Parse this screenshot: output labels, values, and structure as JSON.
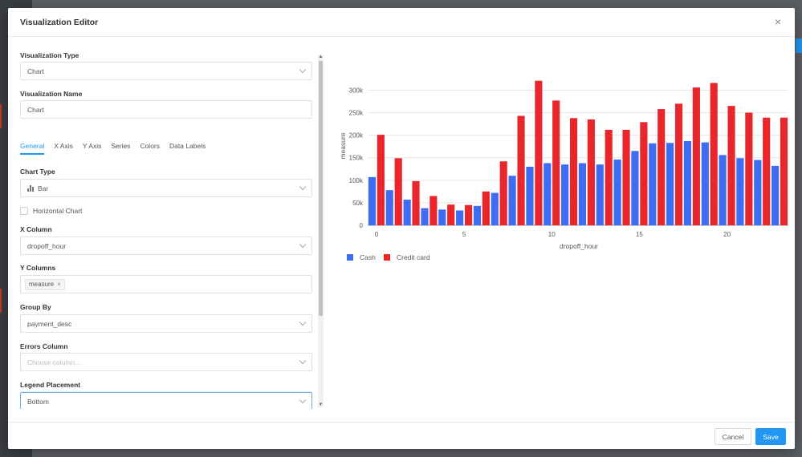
{
  "modal": {
    "title": "Visualization Editor",
    "close_label": "×"
  },
  "form": {
    "viz_type_label": "Visualization Type",
    "viz_type_value": "Chart",
    "viz_name_label": "Visualization Name",
    "viz_name_value": "Chart",
    "tabs": [
      "General",
      "X Axis",
      "Y Axis",
      "Series",
      "Colors",
      "Data Labels"
    ],
    "chart_type_label": "Chart Type",
    "chart_type_value": "Bar",
    "horizontal_label": "Horizontal Chart",
    "x_column_label": "X Column",
    "x_column_value": "dropoff_hour",
    "y_columns_label": "Y Columns",
    "y_columns_tag": "measure",
    "y_columns_tag_remove": "×",
    "group_by_label": "Group By",
    "group_by_value": "payment_desc",
    "errors_label": "Errors Column",
    "errors_placeholder": "Choose column...",
    "legend_label": "Legend Placement",
    "legend_value": "Bottom"
  },
  "footer": {
    "cancel_label": "Cancel",
    "save_label": "Save"
  },
  "colors": {
    "cash": "#3e6df2",
    "credit": "#e8262b",
    "accent": "#2196f3"
  },
  "chart_data": {
    "type": "bar",
    "xlabel": "dropoff_hour",
    "ylabel": "measure",
    "ylim": [
      0,
      340000
    ],
    "yticks": [
      0,
      50000,
      100000,
      150000,
      200000,
      250000,
      300000
    ],
    "ytick_labels": [
      "0",
      "50k",
      "100k",
      "150k",
      "200k",
      "250k",
      "300k"
    ],
    "xticks": [
      0,
      5,
      10,
      15,
      20
    ],
    "categories": [
      0,
      1,
      2,
      3,
      4,
      5,
      6,
      7,
      8,
      9,
      10,
      11,
      12,
      13,
      14,
      15,
      16,
      17,
      18,
      19,
      20,
      21,
      22,
      23
    ],
    "legend_position": "bottom-left",
    "grid": true,
    "series": [
      {
        "name": "Cash",
        "values": [
          107000,
          78000,
          57000,
          38000,
          35000,
          33000,
          43000,
          72000,
          110000,
          130000,
          138000,
          135000,
          138000,
          135000,
          146000,
          165000,
          182000,
          183000,
          187000,
          184000,
          156000,
          149000,
          145000,
          132000
        ]
      },
      {
        "name": "Credit card",
        "values": [
          201000,
          149000,
          98000,
          65000,
          46000,
          45000,
          75000,
          142000,
          243000,
          321000,
          277000,
          238000,
          235000,
          212000,
          212000,
          229000,
          258000,
          270000,
          306000,
          316000,
          265000,
          250000,
          239000,
          239000
        ]
      }
    ]
  }
}
